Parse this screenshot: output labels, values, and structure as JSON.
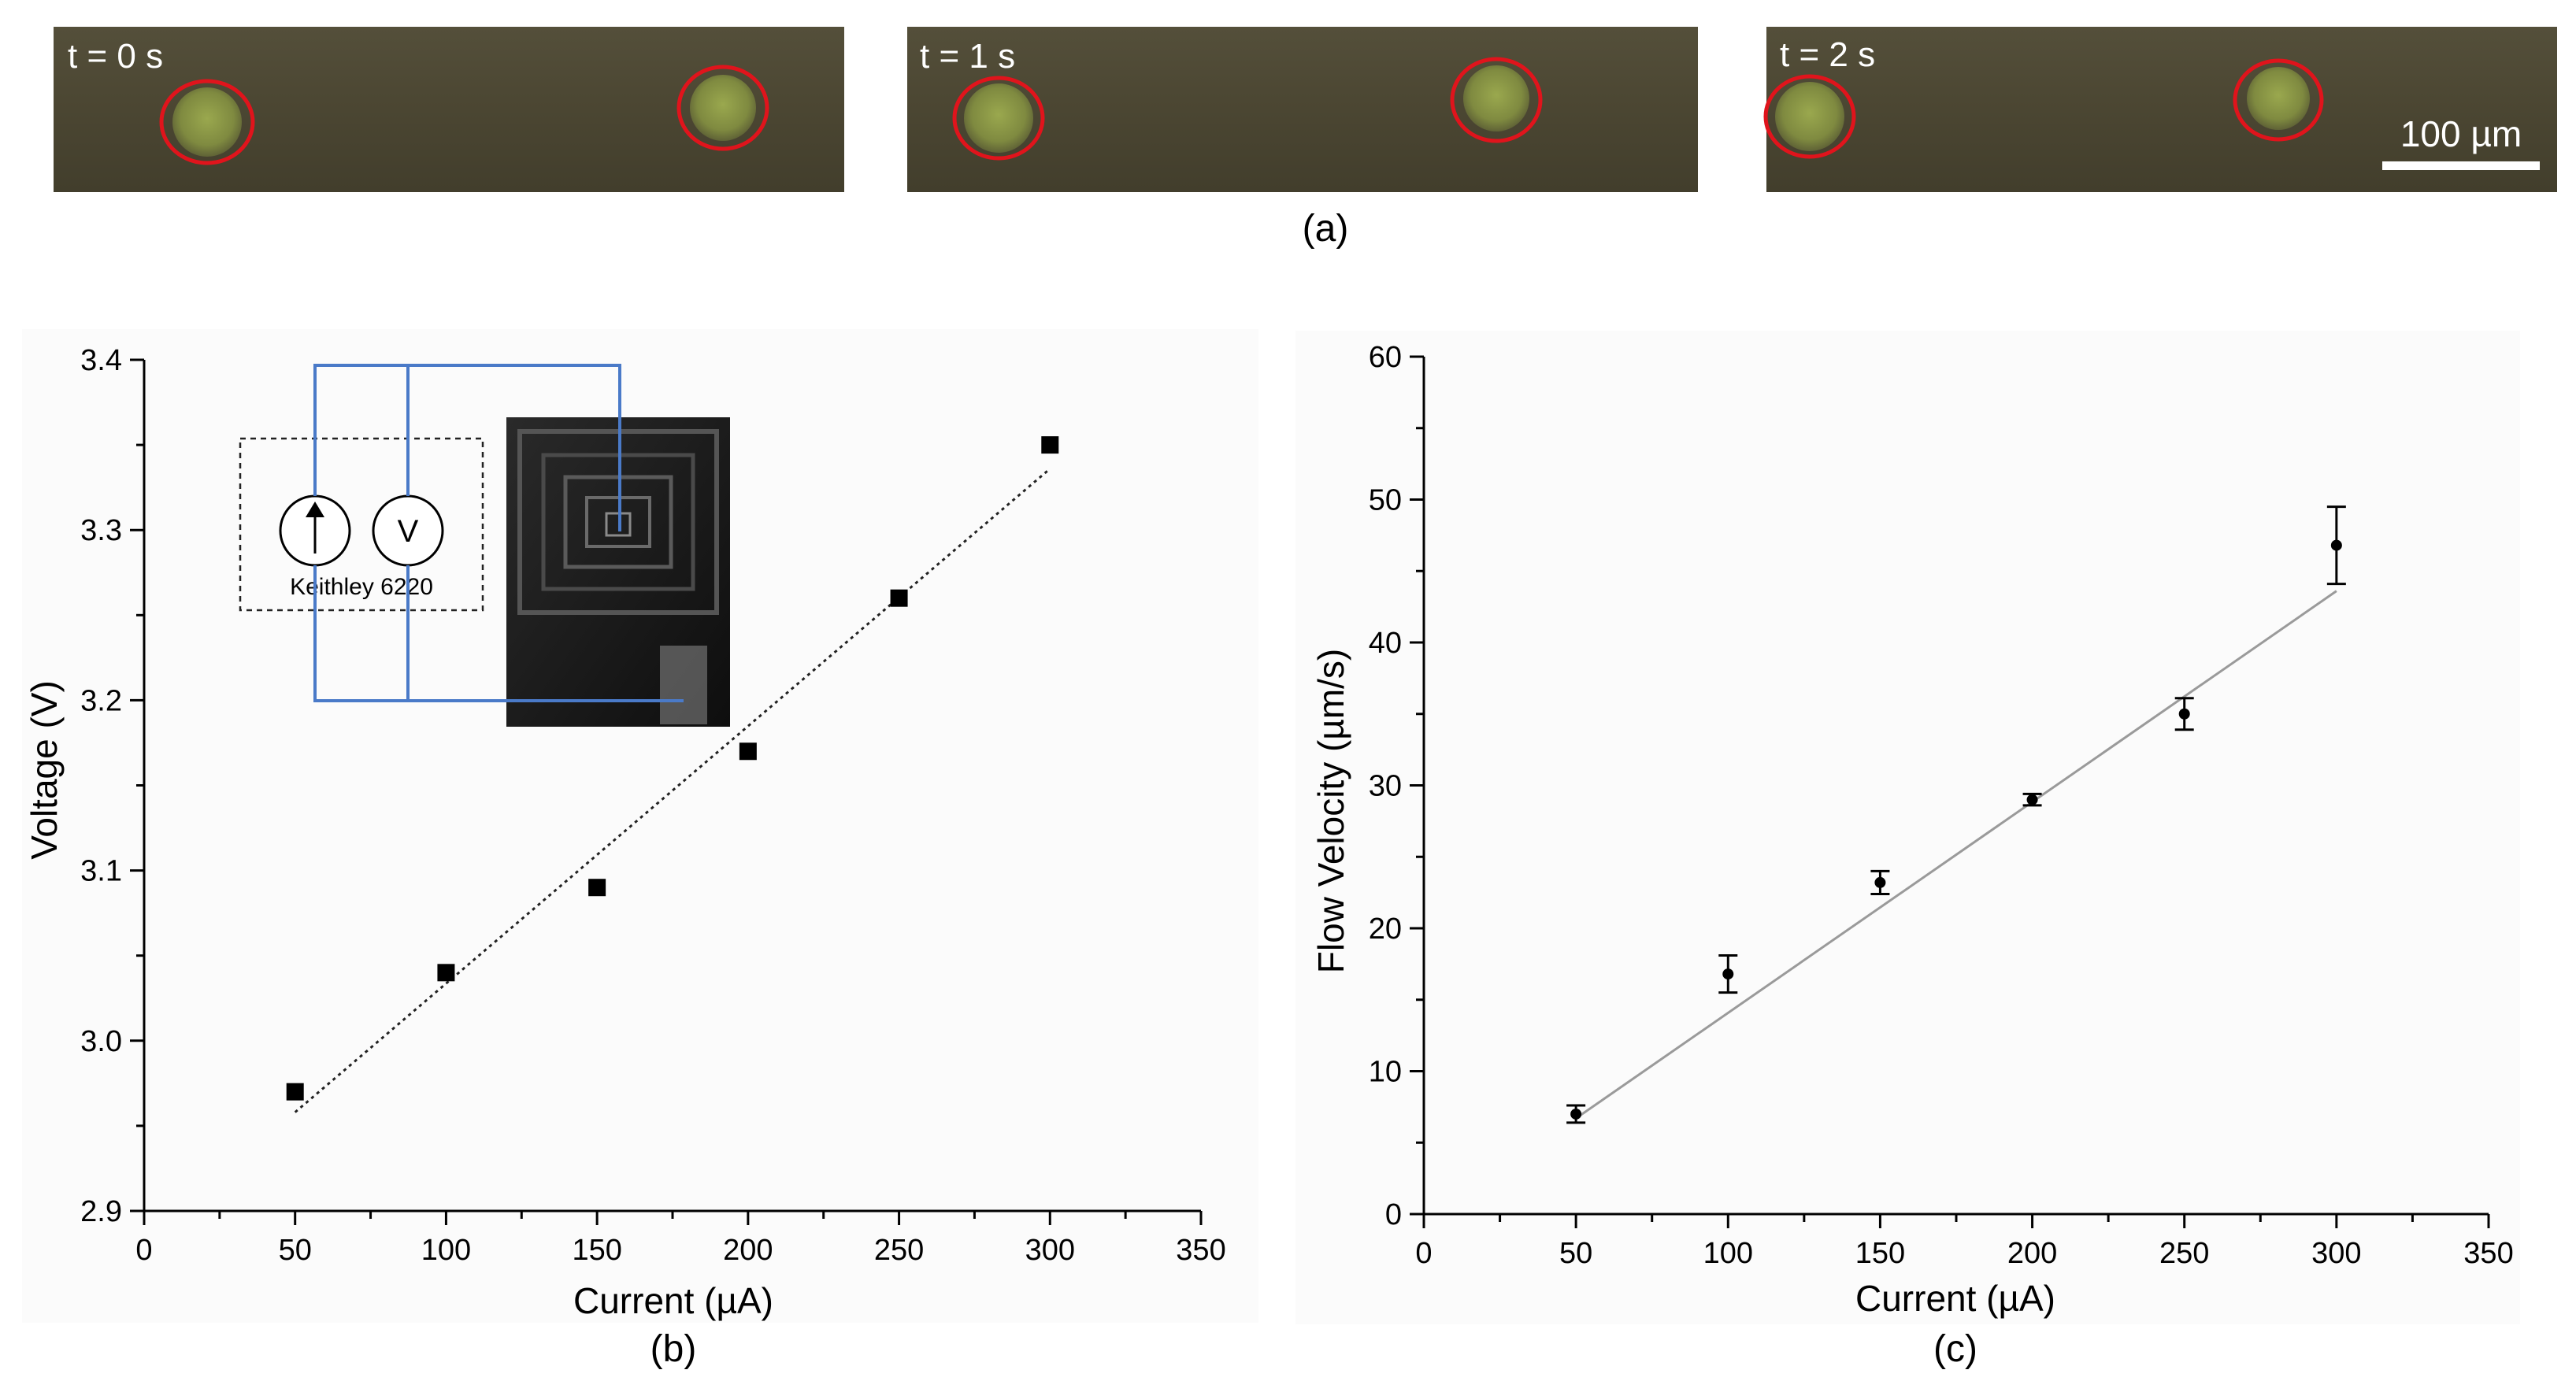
{
  "panel_a": {
    "frames": [
      {
        "label": "t = 0 s"
      },
      {
        "label": "t = 1 s"
      },
      {
        "label": "t = 2 s"
      }
    ],
    "scale_bar_label": "100 µm",
    "caption": "(a)",
    "colors": {
      "channel": "#4a4632",
      "particle": "#8a9a48",
      "marker_circle": "#e0141c"
    }
  },
  "chart_data": [
    {
      "panel": "(b)",
      "type": "scatter",
      "xlabel": "Current (µA)",
      "ylabel": "Voltage (V)",
      "xlim": [
        0,
        350
      ],
      "ylim": [
        2.9,
        3.4
      ],
      "xticks": [
        0,
        50,
        100,
        150,
        200,
        250,
        300,
        350
      ],
      "yticks": [
        2.9,
        3.0,
        3.1,
        3.2,
        3.3,
        3.4
      ],
      "ytick_labels": [
        "2.9",
        "3.0",
        "3.1",
        "3.2",
        "3.3",
        "3.4"
      ],
      "series": [
        {
          "x": [
            50,
            100,
            150,
            200,
            250,
            300
          ],
          "y": [
            2.97,
            3.04,
            3.09,
            3.17,
            3.26,
            3.35
          ],
          "marker": "square"
        }
      ],
      "fit_line": {
        "x": [
          50,
          300
        ],
        "y": [
          2.958,
          3.336
        ],
        "style": "dotted"
      },
      "inset": {
        "instrument_label": "Keithley 6220",
        "voltmeter_symbol": "V"
      },
      "grid": false
    },
    {
      "panel": "(c)",
      "type": "scatter",
      "xlabel": "Current (µA)",
      "ylabel": "Flow Velocity (µm/s)",
      "xlim": [
        0,
        350
      ],
      "ylim": [
        0,
        60
      ],
      "xticks": [
        0,
        50,
        100,
        150,
        200,
        250,
        300,
        350
      ],
      "yticks": [
        0,
        10,
        20,
        30,
        40,
        50,
        60
      ],
      "ytick_labels": [
        "0",
        "10",
        "20",
        "30",
        "40",
        "50",
        "60"
      ],
      "series": [
        {
          "x": [
            50,
            100,
            150,
            200,
            250,
            300
          ],
          "y": [
            7.0,
            16.8,
            23.2,
            29.0,
            35.0,
            46.8
          ],
          "error": [
            0.6,
            1.3,
            0.8,
            0.4,
            1.1,
            2.7
          ],
          "marker": "circle"
        }
      ],
      "fit_line": {
        "x": [
          50,
          300
        ],
        "y": [
          6.7,
          43.6
        ],
        "style": "solid",
        "color": "#9a9a9a"
      },
      "grid": false
    }
  ]
}
